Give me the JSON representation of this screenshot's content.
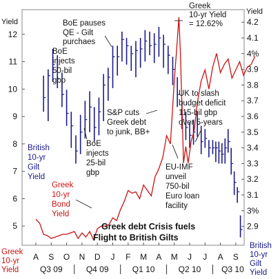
{
  "chart_data": {
    "type": "line",
    "title": "Greek debt Crisis fuels Flight to British Gilts",
    "title_lines": [
      "Greek debt Crisis fuels",
      "Flight to British Gilts"
    ],
    "left_axis": {
      "label": "Yield",
      "ticks": [
        "5",
        "6",
        "7",
        "8",
        "9",
        "10",
        "11",
        "12"
      ],
      "range": [
        4.3,
        12.9
      ]
    },
    "right_axis": {
      "label": "Yield",
      "ticks": [
        "2.9",
        "3%",
        "3.1",
        "3.2",
        "3.3",
        "3.4",
        "3.5",
        "3.6",
        "3.7",
        "3.8",
        "3.9",
        "4%",
        "4.1",
        "4.2"
      ],
      "range": [
        2.78,
        4.28
      ]
    },
    "x_axis": {
      "months": [
        "A",
        "S",
        "O",
        "N",
        "D",
        "J",
        "F",
        "M",
        "A",
        "M",
        "J",
        "J",
        "A",
        "S"
      ],
      "quarters": [
        "Q3 09",
        "Q4 09",
        "Q1 10",
        "Q2 10",
        "Q3 10"
      ]
    },
    "series": [
      {
        "name": "Greek 10-yr Bond Yield",
        "label_lines": [
          "Greek",
          "10-yr",
          "Bond",
          "Yield"
        ],
        "axis": "left",
        "color": "#cc1111",
        "x": [
          0,
          0.25,
          0.5,
          0.75,
          1.0,
          1.25,
          1.5,
          1.75,
          2.0,
          2.25,
          2.5,
          2.75,
          3.0,
          3.25,
          3.5,
          3.75,
          4.0,
          4.25,
          4.5,
          4.75,
          5.0,
          5.25,
          5.5,
          5.75,
          6.0,
          6.25,
          6.5,
          6.75,
          7.0,
          7.25,
          7.5,
          7.75,
          8.0,
          8.25,
          8.5,
          8.75,
          9.0,
          9.15,
          9.3,
          9.4,
          9.5,
          9.6,
          9.75,
          9.9,
          10.1,
          10.3,
          10.5,
          10.75,
          11.0,
          11.25,
          11.5,
          11.75,
          12.0,
          12.25,
          12.5,
          12.75,
          13.0,
          13.25,
          13.5,
          13.75,
          14.0,
          14.25
        ],
        "values": [
          5.25,
          5.1,
          4.7,
          4.65,
          4.55,
          4.6,
          4.65,
          4.7,
          4.7,
          4.75,
          4.8,
          4.55,
          4.75,
          4.6,
          4.8,
          4.5,
          4.9,
          5.0,
          5.0,
          5.05,
          5.3,
          5.2,
          5.6,
          5.9,
          6.3,
          6.2,
          6.25,
          6.0,
          6.5,
          6.3,
          6.1,
          6.8,
          7.1,
          7.5,
          8.3,
          8.0,
          10.3,
          11.4,
          12.62,
          11.3,
          9.3,
          7.3,
          7.9,
          7.3,
          8.1,
          8.5,
          9.5,
          10.3,
          10.7,
          10.0,
          10.8,
          11.3,
          10.6,
          10.9,
          11.1,
          10.4,
          10.7,
          11.0,
          10.5,
          10.8,
          10.9,
          11.2
        ]
      },
      {
        "name": "British 10-yr Gilt Yield",
        "label_lines": [
          "British",
          "10-yr",
          "Gilt",
          "Yield"
        ],
        "axis": "right",
        "color": "#1a1a8a",
        "bars": [
          [
            0.5,
            3.63,
            3.86,
            3.72
          ],
          [
            0.8,
            3.57,
            3.9,
            3.86
          ],
          [
            1.1,
            3.82,
            4.03,
            3.93
          ],
          [
            1.4,
            3.78,
            3.99,
            3.84
          ],
          [
            1.7,
            3.66,
            3.88,
            3.74
          ],
          [
            2.0,
            3.54,
            3.77,
            3.62
          ],
          [
            2.3,
            3.4,
            3.63,
            3.54
          ],
          [
            2.6,
            3.3,
            3.48,
            3.38
          ],
          [
            2.9,
            3.36,
            3.61,
            3.5
          ],
          [
            3.2,
            3.46,
            3.7,
            3.58
          ],
          [
            3.5,
            3.5,
            3.76,
            3.66
          ],
          [
            3.8,
            3.44,
            3.66,
            3.53
          ],
          [
            4.1,
            3.48,
            3.72,
            3.63
          ],
          [
            4.4,
            3.57,
            3.87,
            3.8
          ],
          [
            4.7,
            3.7,
            3.91,
            3.85
          ],
          [
            5.0,
            3.78,
            4.05,
            3.98
          ],
          [
            5.3,
            3.86,
            4.05,
            3.98
          ],
          [
            5.6,
            3.95,
            4.14,
            4.09
          ],
          [
            5.9,
            3.93,
            4.1,
            4.05
          ],
          [
            6.2,
            3.89,
            4.05,
            4.0
          ],
          [
            6.5,
            3.85,
            4.08,
            4.02
          ],
          [
            6.8,
            3.91,
            4.1,
            4.03
          ],
          [
            7.1,
            3.95,
            4.15,
            4.08
          ],
          [
            7.4,
            3.99,
            4.14,
            4.05
          ],
          [
            7.7,
            3.94,
            4.13,
            4.06
          ],
          [
            8.0,
            3.98,
            4.17,
            4.1
          ],
          [
            8.3,
            3.91,
            4.12,
            4.06
          ],
          [
            8.6,
            3.87,
            4.05,
            3.99
          ],
          [
            8.9,
            3.8,
            3.98,
            3.9
          ],
          [
            9.2,
            3.66,
            3.85,
            3.74
          ],
          [
            9.5,
            3.52,
            3.7,
            3.58
          ],
          [
            9.75,
            3.45,
            3.63,
            3.53
          ],
          [
            10.0,
            3.4,
            3.56,
            3.48
          ],
          [
            10.25,
            3.42,
            3.58,
            3.5
          ],
          [
            10.5,
            3.47,
            3.63,
            3.55
          ],
          [
            10.75,
            3.36,
            3.54,
            3.44
          ],
          [
            11.0,
            3.4,
            3.52,
            3.46
          ],
          [
            11.25,
            3.34,
            3.45,
            3.4
          ],
          [
            11.5,
            3.36,
            3.45,
            3.4
          ],
          [
            11.7,
            3.31,
            3.44,
            3.4
          ],
          [
            11.9,
            3.3,
            3.44,
            3.38
          ],
          [
            12.1,
            3.3,
            3.43,
            3.36
          ],
          [
            12.3,
            3.3,
            3.46,
            3.4
          ],
          [
            12.5,
            3.37,
            3.52,
            3.44
          ],
          [
            12.7,
            3.23,
            3.4,
            3.3
          ],
          [
            12.9,
            3.1,
            3.25,
            3.18
          ],
          [
            13.1,
            3.05,
            3.15,
            3.12
          ],
          [
            13.3,
            2.83,
            2.97,
            2.88
          ]
        ]
      }
    ],
    "annotations": [
      {
        "id": "boe-pauses",
        "lines": [
          "BoE pauses",
          "QE - Gilt",
          "purchaes"
        ]
      },
      {
        "id": "greek-peak",
        "lines": [
          "Greek",
          "10-yr Yield",
          "= 12.62%"
        ]
      },
      {
        "id": "boe-injects-50",
        "lines": [
          "BoE",
          "injects",
          "50-bil",
          "gbp"
        ]
      },
      {
        "id": "uk-slash",
        "lines": [
          "UK to slash",
          "budget deficit",
          "115-bil gbp",
          "over 5-years"
        ]
      },
      {
        "id": "sp-cuts",
        "lines": [
          "S&P cuts",
          "Greek debt",
          "to junk, BB+"
        ]
      },
      {
        "id": "boe-injects-25",
        "lines": [
          "BoE",
          "injects",
          "25-bil",
          "gbp"
        ]
      },
      {
        "id": "eu-imf",
        "lines": [
          "EU-IMF",
          "unveil",
          "750-bil",
          "Euro loan",
          "facility"
        ]
      }
    ],
    "legend_left": {
      "lines": [
        "Greek",
        "10-yr",
        "Yield"
      ],
      "color": "#cc1111"
    },
    "legend_right": {
      "lines": [
        "British",
        "10-yr",
        "Gilt",
        "Yield"
      ],
      "color": "#1a1a8a"
    }
  }
}
